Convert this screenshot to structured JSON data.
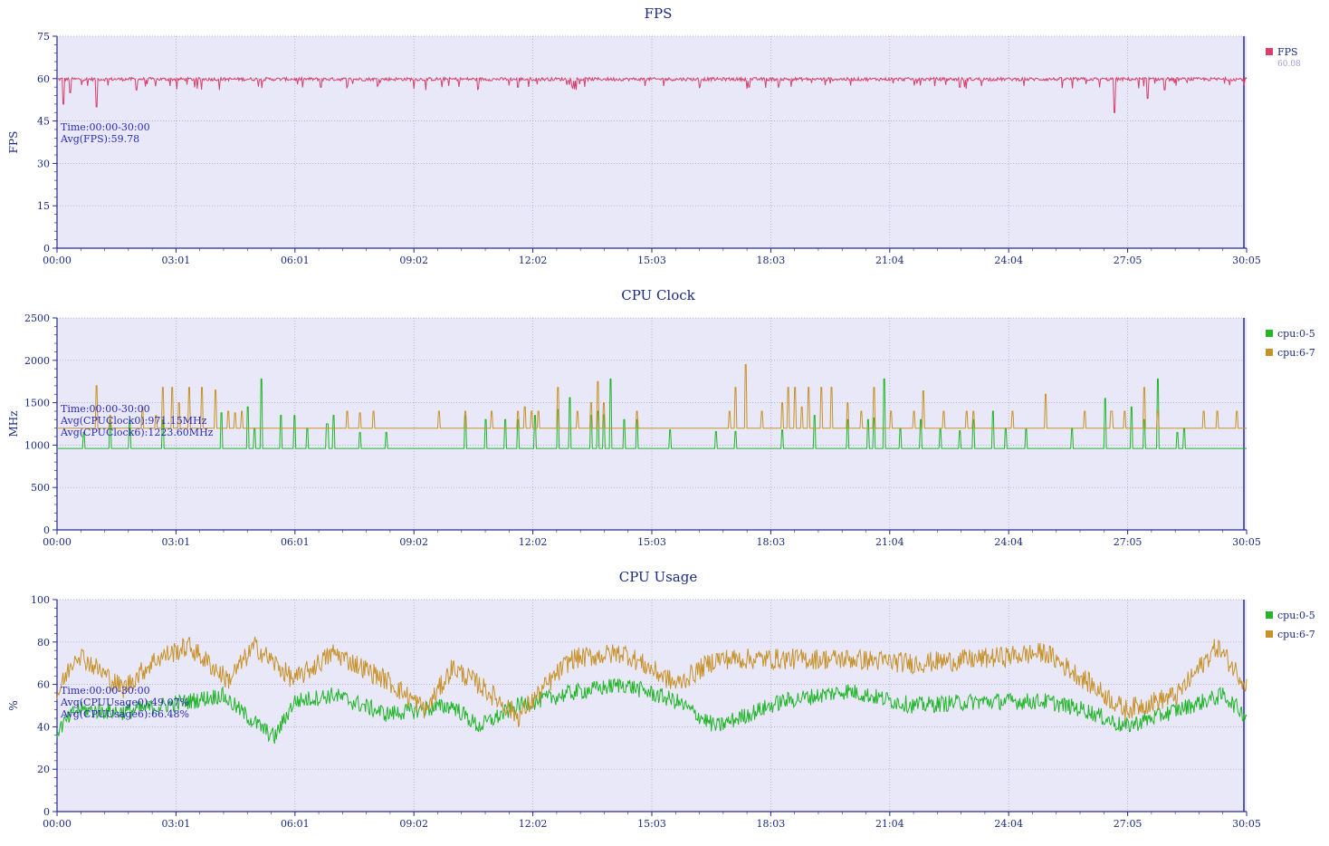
{
  "chart_data": [
    {
      "type": "line",
      "title": "FPS",
      "xlabel": "",
      "ylabel": "FPS",
      "ylim": [
        0,
        75
      ],
      "yticks": [
        0,
        15,
        30,
        45,
        60,
        75
      ],
      "xlim_seconds": [
        0,
        1805
      ],
      "xtick_labels": [
        "00:00",
        "03:01",
        "06:01",
        "09:02",
        "12:02",
        "15:03",
        "18:03",
        "21:04",
        "24:04",
        "27:05",
        "30:05"
      ],
      "grid": true,
      "legend_position": "right",
      "legend": [
        {
          "name": "FPS",
          "color": "#d6406a",
          "value": "60.08"
        }
      ],
      "annotations": [
        "Time:00:00-30:00",
        "Avg(FPS):59.78"
      ],
      "series": [
        {
          "name": "FPS",
          "color": "#d6406a",
          "baseline": 59.8,
          "noise": 0.6,
          "dips": [
            [
              10,
              51
            ],
            [
              20,
              55
            ],
            [
              60,
              50
            ],
            [
              120,
              56
            ],
            [
              400,
              57
            ],
            [
              700,
              57
            ],
            [
              1050,
              57
            ],
            [
              1370,
              57
            ],
            [
              1605,
              48
            ],
            [
              1655,
              53
            ],
            [
              1680,
              56
            ]
          ]
        }
      ]
    },
    {
      "type": "line",
      "title": "CPU Clock",
      "xlabel": "",
      "ylabel": "MHz",
      "ylim": [
        0,
        2500
      ],
      "yticks": [
        0,
        500,
        1000,
        1500,
        2000,
        2500
      ],
      "xlim_seconds": [
        0,
        1805
      ],
      "xtick_labels": [
        "00:00",
        "03:01",
        "06:01",
        "09:02",
        "12:02",
        "15:03",
        "18:03",
        "21:04",
        "24:04",
        "27:05",
        "30:05"
      ],
      "grid": true,
      "legend_position": "right",
      "legend": [
        {
          "name": "cpu:0-5",
          "color": "#22b52a"
        },
        {
          "name": "cpu:6-7",
          "color": "#c8922a"
        }
      ],
      "annotations": [
        "Time:00:00-30:00",
        "Avg(CPUClock0):971.15MHz",
        "Avg(CPUClock6):1223.60MHz"
      ],
      "series": [
        {
          "name": "cpu:0-5",
          "color": "#22b52a",
          "baseline": 960,
          "spikes": [
            [
              40,
              1150
            ],
            [
              80,
              1300
            ],
            [
              110,
              1300
            ],
            [
              160,
              1300
            ],
            [
              250,
              1380
            ],
            [
              290,
              1450
            ],
            [
              300,
              1200
            ],
            [
              310,
              1780
            ],
            [
              340,
              1350
            ],
            [
              360,
              1350
            ],
            [
              380,
              1200
            ],
            [
              410,
              1250
            ],
            [
              420,
              1350
            ],
            [
              460,
              1150
            ],
            [
              500,
              1150
            ],
            [
              620,
              1350
            ],
            [
              650,
              1300
            ],
            [
              680,
              1300
            ],
            [
              700,
              1300
            ],
            [
              725,
              1350
            ],
            [
              760,
              1420
            ],
            [
              778,
              1560
            ],
            [
              810,
              1350
            ],
            [
              820,
              1400
            ],
            [
              830,
              1360
            ],
            [
              840,
              1780
            ],
            [
              860,
              1300
            ],
            [
              880,
              1300
            ],
            [
              930,
              1180
            ],
            [
              1000,
              1160
            ],
            [
              1030,
              1160
            ],
            [
              1100,
              1180
            ],
            [
              1150,
              1350
            ],
            [
              1200,
              1300
            ],
            [
              1230,
              1300
            ],
            [
              1240,
              1320
            ],
            [
              1255,
              1780
            ],
            [
              1280,
              1200
            ],
            [
              1310,
              1300
            ],
            [
              1340,
              1190
            ],
            [
              1370,
              1170
            ],
            [
              1390,
              1300
            ],
            [
              1420,
              1400
            ],
            [
              1440,
              1200
            ],
            [
              1470,
              1190
            ],
            [
              1540,
              1200
            ],
            [
              1590,
              1550
            ],
            [
              1630,
              1450
            ],
            [
              1650,
              1300
            ],
            [
              1670,
              1780
            ],
            [
              1700,
              1150
            ],
            [
              1710,
              1200
            ]
          ]
        },
        {
          "name": "cpu:6-7",
          "color": "#c8922a",
          "baseline": 1200,
          "spikes": [
            [
              60,
              1700
            ],
            [
              80,
              1350
            ],
            [
              130,
              1450
            ],
            [
              150,
              1350
            ],
            [
              160,
              1680
            ],
            [
              175,
              1680
            ],
            [
              185,
              1500
            ],
            [
              200,
              1680
            ],
            [
              220,
              1680
            ],
            [
              240,
              1650
            ],
            [
              260,
              1400
            ],
            [
              270,
              1380
            ],
            [
              280,
              1400
            ],
            [
              440,
              1400
            ],
            [
              460,
              1380
            ],
            [
              480,
              1400
            ],
            [
              580,
              1400
            ],
            [
              620,
              1400
            ],
            [
              660,
              1400
            ],
            [
              700,
              1400
            ],
            [
              710,
              1450
            ],
            [
              720,
              1400
            ],
            [
              730,
              1400
            ],
            [
              760,
              1680
            ],
            [
              790,
              1400
            ],
            [
              810,
              1500
            ],
            [
              820,
              1750
            ],
            [
              830,
              1500
            ],
            [
              880,
              1400
            ],
            [
              1020,
              1400
            ],
            [
              1030,
              1680
            ],
            [
              1045,
              1950
            ],
            [
              1070,
              1400
            ],
            [
              1100,
              1500
            ],
            [
              1110,
              1680
            ],
            [
              1120,
              1680
            ],
            [
              1130,
              1450
            ],
            [
              1140,
              1680
            ],
            [
              1160,
              1680
            ],
            [
              1175,
              1680
            ],
            [
              1200,
              1500
            ],
            [
              1220,
              1400
            ],
            [
              1240,
              1680
            ],
            [
              1265,
              1400
            ],
            [
              1300,
              1400
            ],
            [
              1315,
              1640
            ],
            [
              1345,
              1400
            ],
            [
              1380,
              1400
            ],
            [
              1390,
              1400
            ],
            [
              1450,
              1400
            ],
            [
              1500,
              1600
            ],
            [
              1560,
              1400
            ],
            [
              1600,
              1400
            ],
            [
              1620,
              1400
            ],
            [
              1650,
              1680
            ],
            [
              1670,
              1400
            ],
            [
              1740,
              1400
            ],
            [
              1760,
              1400
            ],
            [
              1790,
              1400
            ]
          ]
        }
      ]
    },
    {
      "type": "line",
      "title": "CPU Usage",
      "xlabel": "",
      "ylabel": "%",
      "ylim": [
        0,
        100
      ],
      "yticks": [
        0,
        20,
        40,
        60,
        80,
        100
      ],
      "xlim_seconds": [
        0,
        1805
      ],
      "xtick_labels": [
        "00:00",
        "03:01",
        "06:01",
        "09:02",
        "12:02",
        "15:03",
        "18:03",
        "21:04",
        "24:04",
        "27:05",
        "30:05"
      ],
      "grid": true,
      "legend_position": "right",
      "legend": [
        {
          "name": "cpu:0-5",
          "color": "#22b52a"
        },
        {
          "name": "cpu:6-7",
          "color": "#c8922a"
        }
      ],
      "annotations": [
        "Time:00:00-30:00",
        "Avg(CPUUsage0):49.07%",
        "Avg(CPUUsage6):66.48%"
      ],
      "series": [
        {
          "name": "cpu:0-5",
          "color": "#22b52a",
          "profile": [
            [
              0,
              38
            ],
            [
              30,
              48
            ],
            [
              100,
              47
            ],
            [
              200,
              52
            ],
            [
              250,
              55
            ],
            [
              300,
              42
            ],
            [
              330,
              35
            ],
            [
              360,
              52
            ],
            [
              420,
              55
            ],
            [
              500,
              46
            ],
            [
              600,
              50
            ],
            [
              640,
              40
            ],
            [
              700,
              50
            ],
            [
              780,
              56
            ],
            [
              860,
              60
            ],
            [
              940,
              52
            ],
            [
              1000,
              40
            ],
            [
              1100,
              52
            ],
            [
              1200,
              57
            ],
            [
              1300,
              50
            ],
            [
              1400,
              52
            ],
            [
              1500,
              52
            ],
            [
              1560,
              48
            ],
            [
              1620,
              40
            ],
            [
              1700,
              48
            ],
            [
              1770,
              55
            ],
            [
              1805,
              45
            ]
          ],
          "noise": 4
        },
        {
          "name": "cpu:6-7",
          "color": "#c8922a",
          "profile": [
            [
              0,
              55
            ],
            [
              30,
              75
            ],
            [
              100,
              58
            ],
            [
              150,
              72
            ],
            [
              200,
              78
            ],
            [
              260,
              62
            ],
            [
              300,
              78
            ],
            [
              360,
              62
            ],
            [
              420,
              75
            ],
            [
              500,
              62
            ],
            [
              560,
              48
            ],
            [
              600,
              68
            ],
            [
              640,
              60
            ],
            [
              700,
              45
            ],
            [
              780,
              72
            ],
            [
              860,
              75
            ],
            [
              940,
              60
            ],
            [
              1000,
              72
            ],
            [
              1100,
              72
            ],
            [
              1200,
              72
            ],
            [
              1300,
              70
            ],
            [
              1400,
              72
            ],
            [
              1500,
              75
            ],
            [
              1560,
              62
            ],
            [
              1620,
              48
            ],
            [
              1700,
              55
            ],
            [
              1760,
              78
            ],
            [
              1805,
              60
            ]
          ],
          "noise": 5
        }
      ]
    }
  ]
}
